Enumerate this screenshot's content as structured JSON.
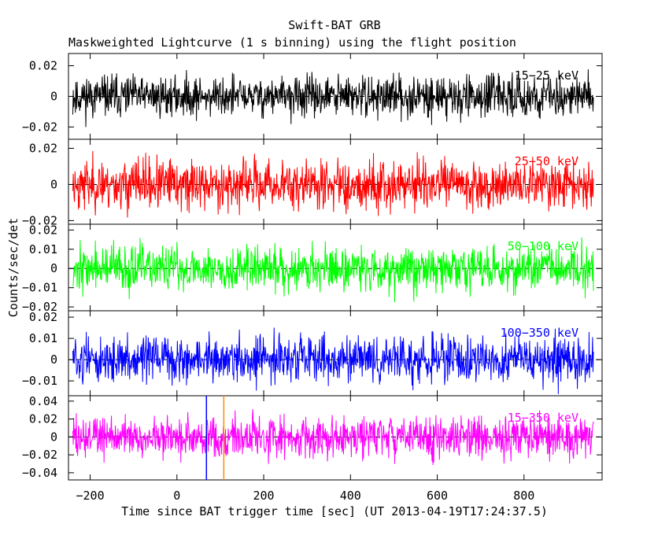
{
  "chart_data": {
    "type": "line",
    "title": "Swift-BAT GRB",
    "subtitle": "Maskweighted Lightcurve (1 s binning) using the flight position",
    "xlabel": "Time since BAT trigger time [sec] (UT 2013-04-19T17:24:37.5)",
    "ylabel": "Counts/sec/det",
    "xlim": [
      -250,
      980
    ],
    "x_ticks": [
      -200,
      0,
      200,
      400,
      600,
      800
    ],
    "x_tick_labels": [
      "−200",
      "0",
      "200",
      "400",
      "600",
      "800"
    ],
    "data_x_range": [
      -240,
      960
    ],
    "markers": [
      {
        "x": 68,
        "color": "#0000ff"
      },
      {
        "x": 108,
        "color": "#ff8c00"
      }
    ],
    "panels": [
      {
        "name": "15-25 keV",
        "label": "15−25 keV",
        "color": "#000000",
        "ylim": [
          -0.028,
          0.028
        ],
        "y_ticks": [
          0.02,
          0,
          -0.02
        ],
        "y_tick_labels": [
          "0.02",
          "0",
          "−0.02"
        ],
        "noise_sigma": 0.0065,
        "y_values_note": "noise around 0",
        "seed": 11
      },
      {
        "name": "25-50 keV",
        "label": "25−50 keV",
        "color": "#ff0000",
        "ylim": [
          -0.022,
          0.025
        ],
        "y_ticks": [
          0.02,
          0,
          -0.02
        ],
        "y_tick_labels": [
          "0.02",
          "0",
          "−0.02"
        ],
        "noise_sigma": 0.0068,
        "seed": 23
      },
      {
        "name": "50-100 keV",
        "label": "50−100 keV",
        "color": "#00ff00",
        "ylim": [
          -0.022,
          0.023
        ],
        "y_ticks": [
          0.02,
          0.01,
          0,
          -0.01,
          -0.02
        ],
        "y_tick_labels": [
          "0.02",
          "0.01",
          "0",
          "−0.01",
          "−0.02"
        ],
        "noise_sigma": 0.0058,
        "seed": 37
      },
      {
        "name": "100-350 keV",
        "label": "100−350 keV",
        "color": "#0000ff",
        "ylim": [
          -0.017,
          0.023
        ],
        "y_ticks": [
          0.02,
          0.01,
          0,
          -0.01
        ],
        "y_tick_labels": [
          "0.02",
          "0.01",
          "0",
          "−0.01"
        ],
        "noise_sigma": 0.0052,
        "seed": 51
      },
      {
        "name": "15-350 keV",
        "label": "15−350 keV",
        "color": "#ff00ff",
        "ylim": [
          -0.048,
          0.046
        ],
        "y_ticks": [
          0.04,
          0.02,
          0,
          -0.02,
          -0.04
        ],
        "y_tick_labels": [
          "0.04",
          "0.02",
          "0",
          "−0.02",
          "−0.04"
        ],
        "noise_sigma": 0.0115,
        "seed": 73
      }
    ]
  }
}
